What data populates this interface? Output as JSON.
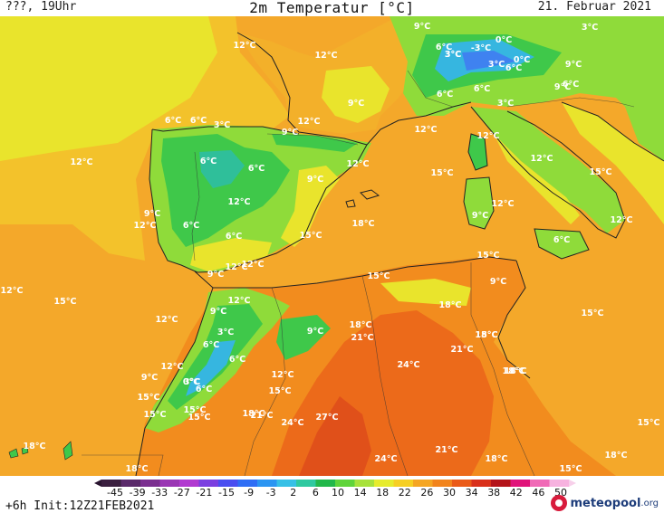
{
  "header": {
    "left_text": "???, 19Uhr",
    "title": "2m Temperatur [°C]",
    "date": "21. Februar 2021"
  },
  "footer": {
    "forecast_info": "+6h  Init:12Z21FEB2021",
    "logo_brand": "meteopool",
    "logo_tld": ".org",
    "logo_icon": "meteopool-logo-icon"
  },
  "colorbar": {
    "ticks": [
      "-45",
      "-39",
      "-33",
      "-27",
      "-21",
      "-15",
      "-9",
      "-3",
      "2",
      "6",
      "10",
      "14",
      "18",
      "22",
      "26",
      "30",
      "34",
      "38",
      "42",
      "46",
      "50"
    ],
    "colors": [
      "#3a1f3f",
      "#5a2a6a",
      "#7a2f8f",
      "#9a36b4",
      "#b13ad0",
      "#7b3fe0",
      "#4a4ef0",
      "#2f6ef5",
      "#2b95f2",
      "#37c0e6",
      "#2fc9a0",
      "#22b84a",
      "#5fd43a",
      "#a8e23b",
      "#e6ec2d",
      "#f6cf23",
      "#f5a623",
      "#f2841c",
      "#ea5a17",
      "#d9301a",
      "#b4141a",
      "#e0147a",
      "#f06ab6",
      "#f7b2df"
    ]
  },
  "map_colors": {
    "sea": "#f4a82a",
    "land_warm": "#f28c1e",
    "land_hot": "#ec6a1a",
    "yellow": "#e9e42c",
    "light_green": "#8fdb3a",
    "green": "#3fc84a",
    "teal": "#2fbf9a",
    "cyan": "#36b6e0",
    "blue": "#3f82f0",
    "coast": "#222222"
  },
  "labels": [
    {
      "text": "9°C"
    },
    {
      "text": "3°C"
    },
    {
      "text": "6°C"
    },
    {
      "text": "3°C"
    },
    {
      "text": "0°C"
    },
    {
      "text": "-3°C"
    },
    {
      "text": "3°C"
    },
    {
      "text": "0°C"
    },
    {
      "text": "3°C"
    },
    {
      "text": "6°C"
    },
    {
      "text": "12°C"
    },
    {
      "text": "12°C"
    },
    {
      "text": "9°C"
    },
    {
      "text": "6°C"
    },
    {
      "text": "9°C"
    },
    {
      "text": "6°C"
    },
    {
      "text": "6°C"
    },
    {
      "text": "6°C"
    },
    {
      "text": "3°C"
    },
    {
      "text": "6°C"
    },
    {
      "text": "9°C"
    },
    {
      "text": "3°C"
    },
    {
      "text": "12°C"
    },
    {
      "text": "12°C"
    },
    {
      "text": "12°C"
    },
    {
      "text": "6°C"
    },
    {
      "text": "6°C"
    },
    {
      "text": "9°C"
    },
    {
      "text": "12°C"
    },
    {
      "text": "9°C"
    },
    {
      "text": "12°C"
    },
    {
      "text": "6°C"
    },
    {
      "text": "9°C"
    },
    {
      "text": "12°C"
    },
    {
      "text": "9°C"
    },
    {
      "text": "6°C"
    },
    {
      "text": "12°C"
    },
    {
      "text": "6°C"
    },
    {
      "text": "15°C"
    },
    {
      "text": "12°C"
    },
    {
      "text": "9°C"
    },
    {
      "text": "12°C"
    },
    {
      "text": "12°C"
    },
    {
      "text": "3°C"
    },
    {
      "text": "6°C"
    },
    {
      "text": "15°C"
    },
    {
      "text": "18°C"
    },
    {
      "text": "12°C"
    },
    {
      "text": "15°C"
    },
    {
      "text": "12°C"
    },
    {
      "text": "15°C"
    },
    {
      "text": "18°C"
    },
    {
      "text": "15°C"
    },
    {
      "text": "9°C"
    },
    {
      "text": "15°C"
    },
    {
      "text": "12°C"
    },
    {
      "text": "15°C"
    },
    {
      "text": "12°C"
    },
    {
      "text": "9°C"
    },
    {
      "text": "18°C"
    },
    {
      "text": "21°C"
    },
    {
      "text": "18°C"
    },
    {
      "text": "21°C"
    },
    {
      "text": "9°C"
    },
    {
      "text": "15°C"
    },
    {
      "text": "12°C"
    },
    {
      "text": "6°C"
    },
    {
      "text": "3°C"
    },
    {
      "text": "6°C"
    },
    {
      "text": "24°C"
    },
    {
      "text": "18°C"
    },
    {
      "text": "9°C"
    },
    {
      "text": "0°C"
    },
    {
      "text": "15°C"
    },
    {
      "text": "15°C"
    },
    {
      "text": "12°C"
    },
    {
      "text": "18°C"
    },
    {
      "text": "15°C"
    },
    {
      "text": "15°C"
    },
    {
      "text": "21°C"
    },
    {
      "text": "24°C"
    },
    {
      "text": "27°C"
    },
    {
      "text": "18°C"
    },
    {
      "text": "18°C"
    },
    {
      "text": "21°C"
    },
    {
      "text": "24°C"
    },
    {
      "text": "18°C"
    },
    {
      "text": "15°C"
    },
    {
      "text": "18°C"
    },
    {
      "text": "15°C"
    },
    {
      "text": "18°C"
    },
    {
      "text": "15°C"
    },
    {
      "text": "12°C"
    }
  ]
}
